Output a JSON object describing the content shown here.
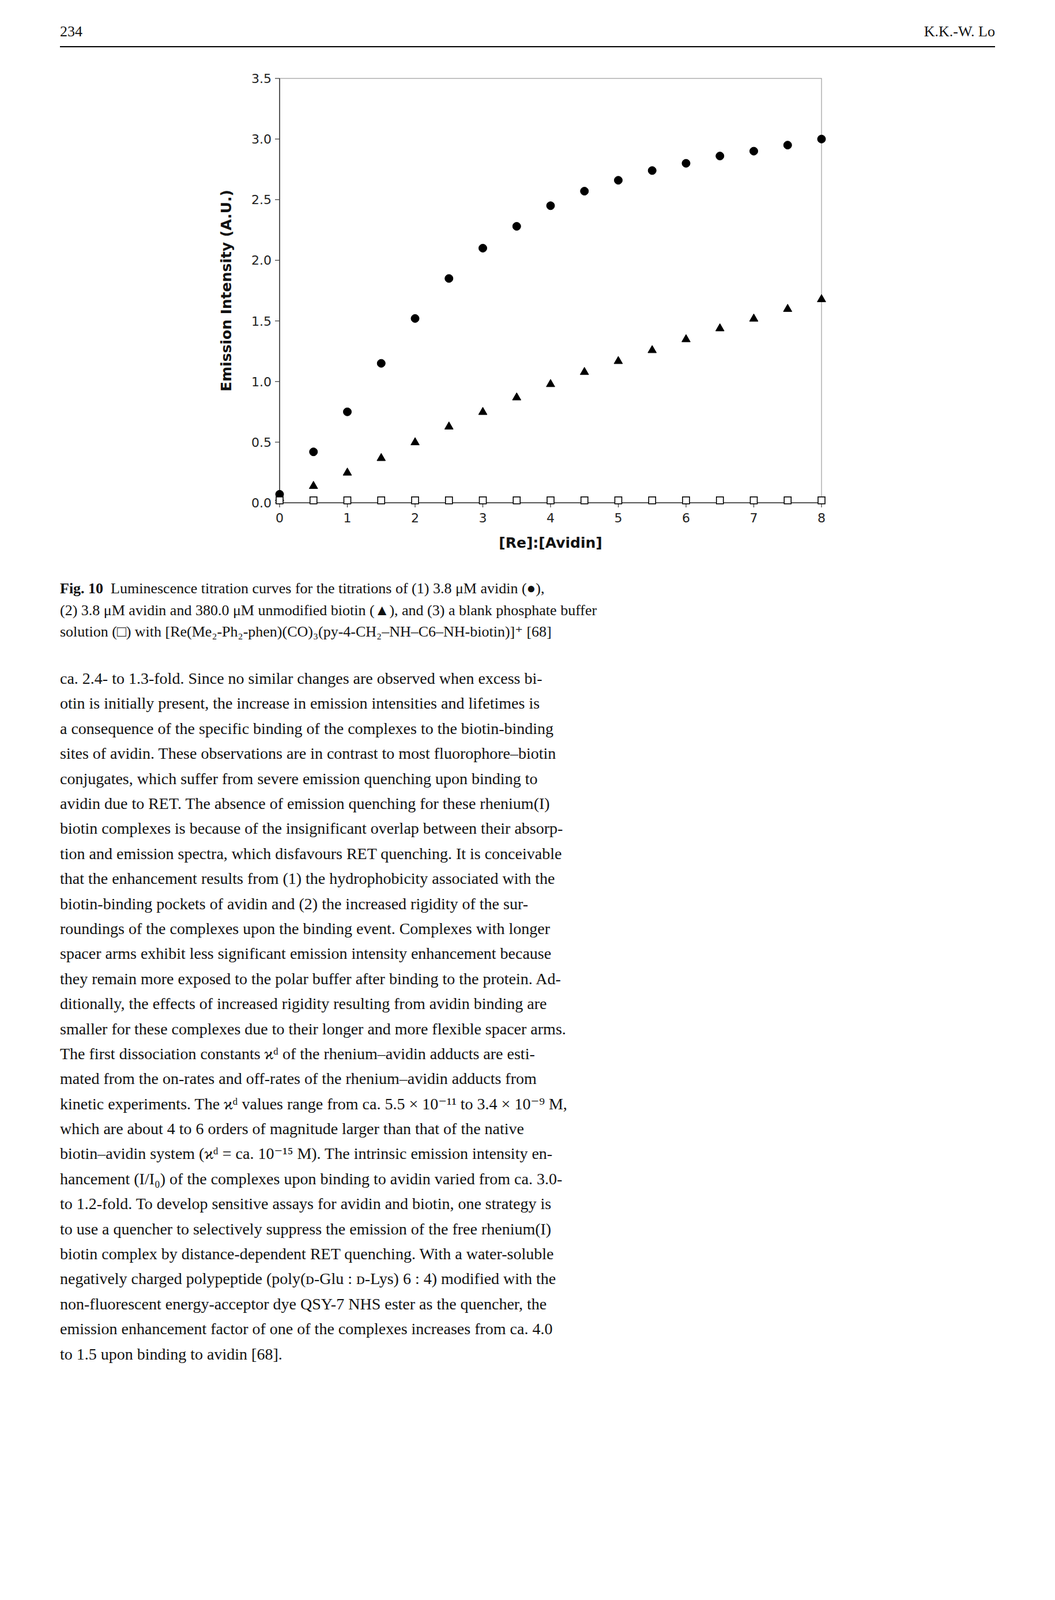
{
  "header": {
    "left": "234",
    "right": "K.K.-W. Lo"
  },
  "chart_data": {
    "type": "scatter",
    "xlabel": "[Re]:[Avidin]",
    "ylabel": "Emission Intensity (A.U.)",
    "xlim": [
      0,
      8
    ],
    "ylim": [
      0.0,
      3.5
    ],
    "xticks": [
      0,
      1,
      2,
      3,
      4,
      5,
      6,
      7,
      8
    ],
    "yticks": [
      {
        "value": 0.0,
        "label": "0.0"
      },
      0.5,
      {
        "value": 1.0,
        "label": "1.0"
      },
      1.5,
      {
        "value": 2.0,
        "label": "2.0"
      },
      2.5,
      {
        "value": 3.0,
        "label": "3.0"
      },
      3.5
    ],
    "x": [
      0.0,
      0.5,
      1.0,
      1.5,
      2.0,
      2.5,
      3.0,
      3.5,
      4.0,
      4.5,
      5.0,
      5.5,
      6.0,
      6.5,
      7.0,
      7.5,
      8.0
    ],
    "series": [
      {
        "color": "#000000",
        "marker": "circle",
        "values": [
          0.07,
          0.42,
          0.75,
          1.15,
          1.52,
          1.85,
          2.1,
          2.28,
          2.45,
          2.57,
          2.66,
          2.74,
          2.8,
          2.86,
          2.9,
          2.95,
          3.0
        ]
      },
      {
        "color": "#000000",
        "marker": "triangle",
        "values": [
          0.04,
          0.14,
          0.25,
          0.37,
          0.5,
          0.63,
          0.75,
          0.87,
          0.98,
          1.08,
          1.17,
          1.26,
          1.35,
          1.44,
          1.52,
          1.6,
          1.68
        ]
      },
      {
        "color": "#000000",
        "marker": "open-square",
        "values": [
          0.02,
          0.02,
          0.02,
          0.02,
          0.02,
          0.02,
          0.02,
          0.02,
          0.02,
          0.02,
          0.02,
          0.02,
          0.02,
          0.02,
          0.02,
          0.02,
          0.02
        ]
      }
    ]
  },
  "caption": {
    "label": "Fig. 10",
    "lines": [
      "Luminescence titration curves for the titrations of (1) 3.8 μM avidin (●),",
      "(2) 3.8 μM avidin and 380.0 μM unmodified biotin (▲), and (3) a blank phosphate buffer",
      "solution (□) with [Re(Me₂-Ph₂-phen)(CO)₃(py-4-CH₂–NH–C6–NH-biotin)]⁺ [68]"
    ]
  },
  "body": [
    "ca. 2.4- to 1.3-fold. Since no similar changes are observed when excess bi-",
    "otin is initially present, the increase in emission intensities and lifetimes is",
    "a consequence of the specific binding of the complexes to the biotin-binding",
    "sites of avidin. These observations are in contrast to most fluorophore–biotin",
    "conjugates, which suffer from severe emission quenching upon binding to",
    "avidin due to RET. The absence of emission quenching for these rhenium(I)",
    "biotin complexes is because of the insignificant overlap between their absorp-",
    "tion and emission spectra, which disfavours RET quenching. It is conceivable",
    "that the enhancement results from (1) the hydrophobicity associated with the",
    "biotin-binding pockets of avidin and (2) the increased rigidity of the sur-",
    "roundings of the complexes upon the binding event. Complexes with longer",
    "spacer arms exhibit less significant emission intensity enhancement because",
    "they remain more exposed to the polar buffer after binding to the protein. Ad-",
    "ditionally, the effects of increased rigidity resulting from avidin binding are",
    "smaller for these complexes due to their longer and more flexible spacer arms.",
    "The first dissociation constants ϰᵈ of the rhenium–avidin adducts are esti-",
    "mated from the on-rates and off-rates of the rhenium–avidin adducts from",
    "kinetic experiments. The ϰᵈ values range from ca. 5.5 × 10⁻¹¹ to 3.4 × 10⁻⁹ M,",
    "which are about 4 to 6 orders of magnitude larger than that of the native",
    "biotin–avidin system (ϰᵈ = ca. 10⁻¹⁵ M). The intrinsic emission intensity en-",
    "hancement (I/I₀) of the complexes upon binding to avidin varied from ca. 3.0-",
    "to 1.2-fold. To develop sensitive assays for avidin and biotin, one strategy is",
    "to use a quencher to selectively suppress the emission of the free rhenium(I)",
    "biotin complex by distance-dependent RET quenching. With a water-soluble",
    "negatively charged polypeptide (poly(ᴅ-Glu : ᴅ-Lys) 6 : 4) modified with the",
    "non-fluorescent energy-acceptor dye QSY-7 NHS ester as the quencher, the",
    "emission enhancement factor of one of the complexes increases from ca. 4.0",
    "to 1.5 upon binding to avidin [68]."
  ]
}
